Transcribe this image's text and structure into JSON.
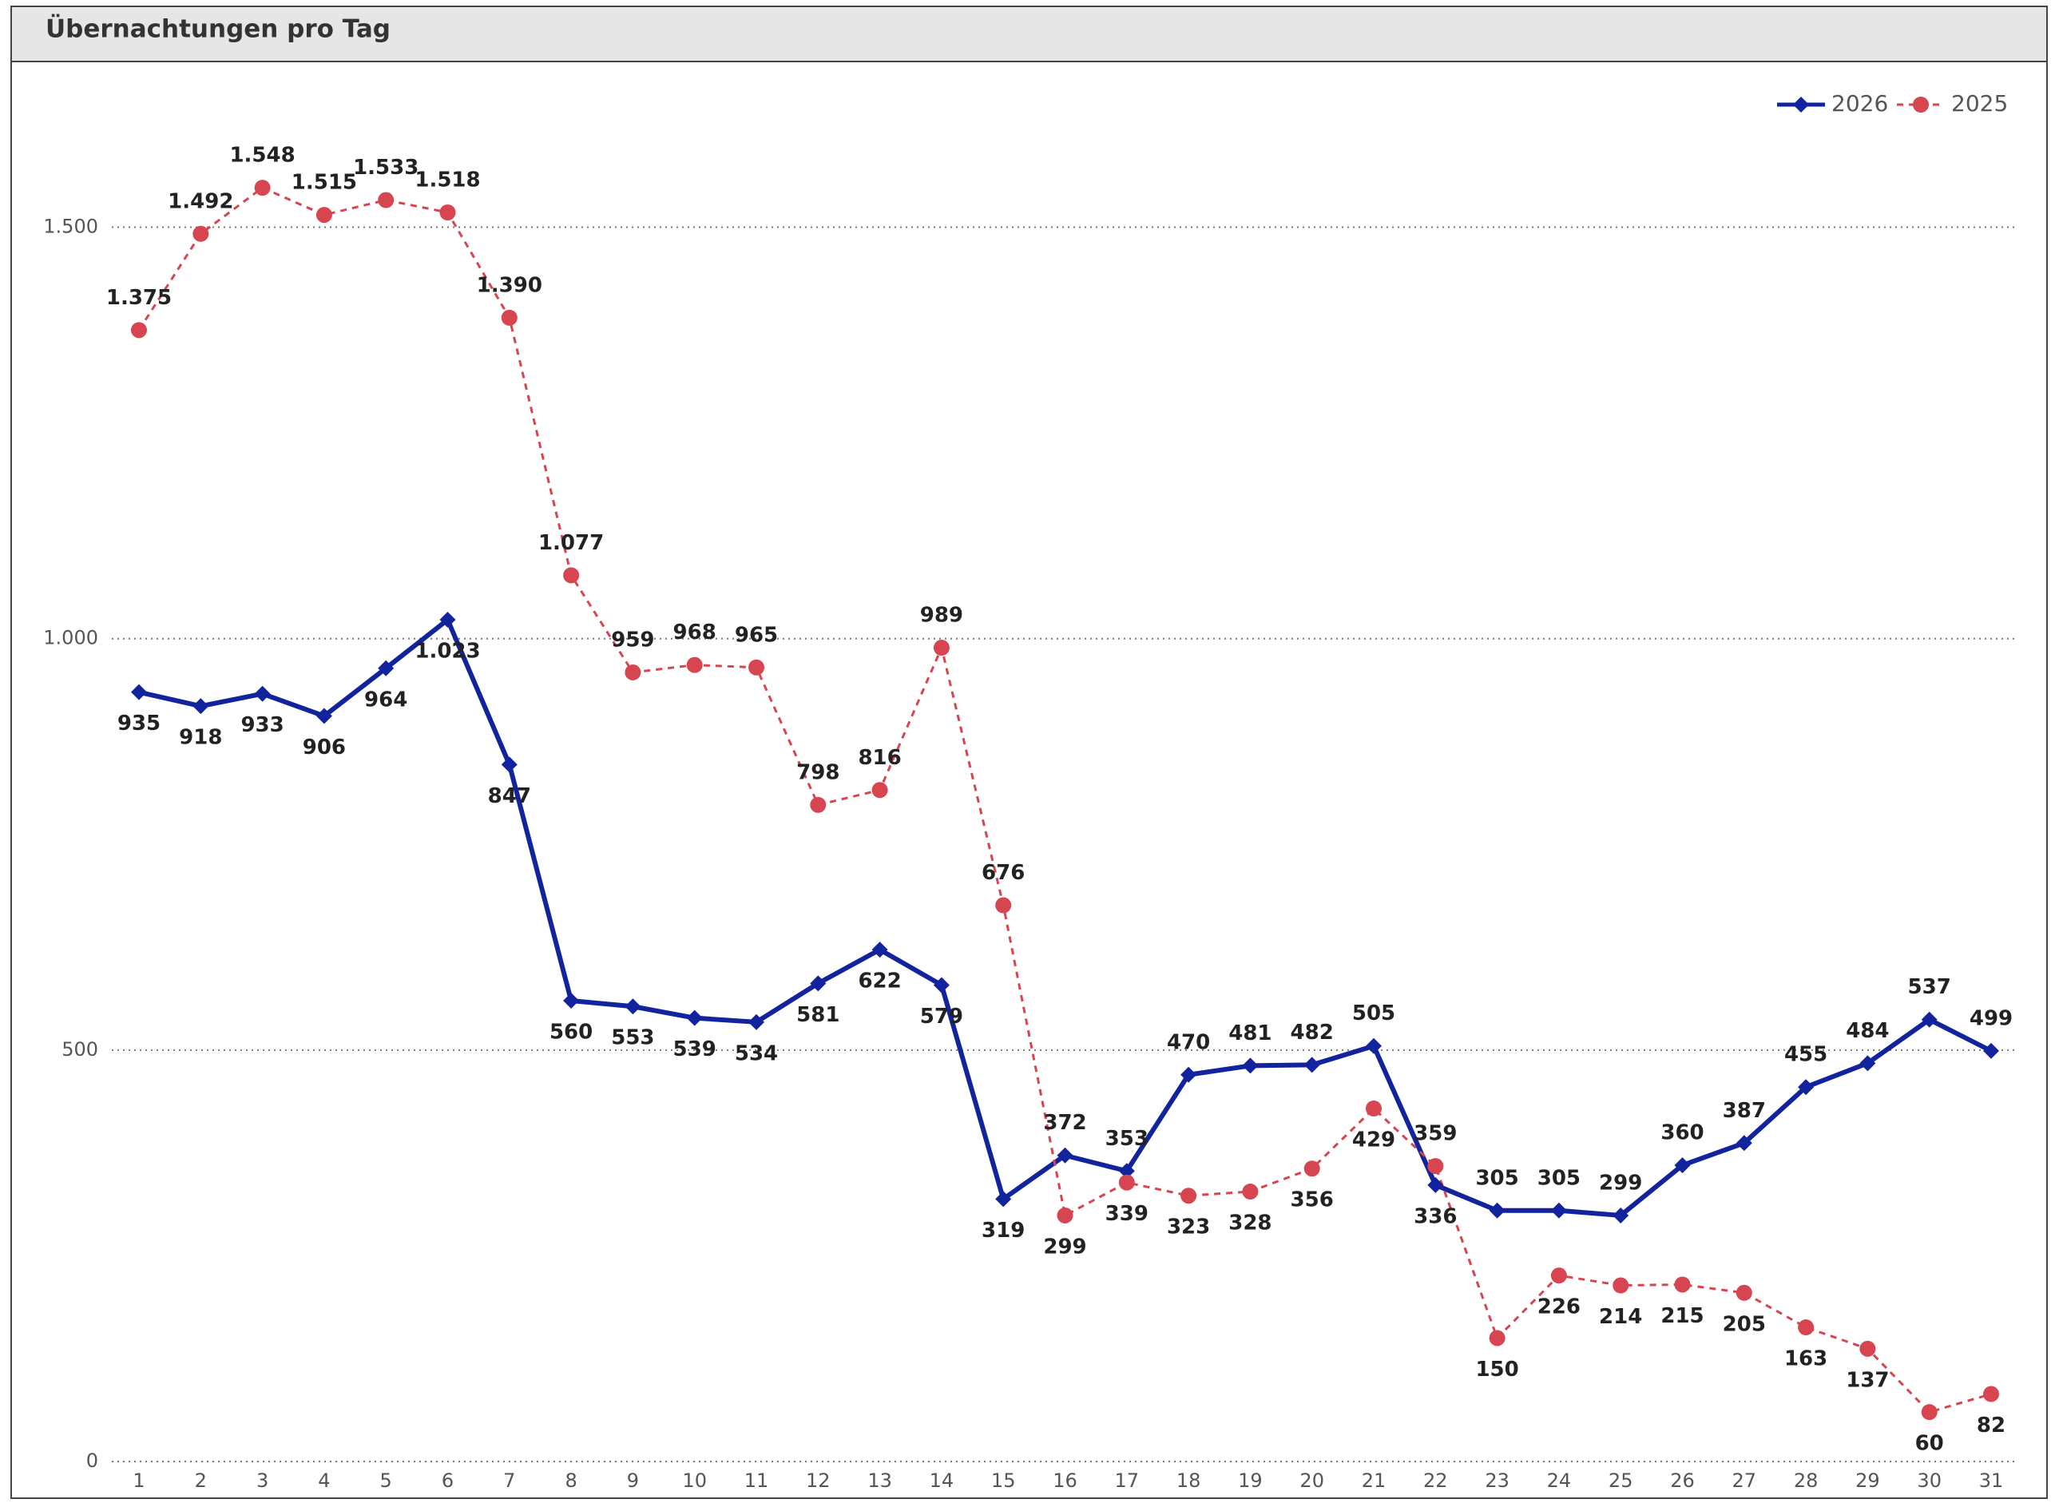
{
  "chart_data": {
    "type": "line",
    "title": "Übernachtungen pro Tag",
    "categories": [
      1,
      2,
      3,
      4,
      5,
      6,
      7,
      8,
      9,
      10,
      11,
      12,
      13,
      14,
      15,
      16,
      17,
      18,
      19,
      20,
      21,
      22,
      23,
      24,
      25,
      26,
      27,
      28,
      29,
      30,
      31
    ],
    "series": [
      {
        "name": "2026",
        "color": "#12239e",
        "marker": "diamond",
        "dash": false,
        "values": [
          935,
          918,
          933,
          906,
          964,
          1023,
          847,
          560,
          553,
          539,
          534,
          581,
          622,
          579,
          319,
          372,
          353,
          470,
          481,
          482,
          505,
          336,
          305,
          305,
          299,
          360,
          387,
          455,
          484,
          537,
          499
        ],
        "value_labels": [
          "935",
          "918",
          "933",
          "906",
          "964",
          "1.023",
          "847",
          "560",
          "553",
          "539",
          "534",
          "581",
          "622",
          "579",
          "319",
          "372",
          "353",
          "470",
          "481",
          "482",
          "505",
          "336",
          "305",
          "305",
          "299",
          "360",
          "387",
          "455",
          "484",
          "537",
          "499"
        ]
      },
      {
        "name": "2025",
        "color": "#d64550",
        "marker": "circle",
        "dash": true,
        "values": [
          1375,
          1492,
          1548,
          1515,
          1533,
          1518,
          1390,
          1077,
          959,
          968,
          965,
          798,
          816,
          989,
          676,
          299,
          339,
          323,
          328,
          356,
          429,
          359,
          150,
          226,
          214,
          215,
          205,
          163,
          137,
          60,
          82
        ],
        "value_labels": [
          "1.375",
          "1.492",
          "1.548",
          "1.515",
          "1.533",
          "1.518",
          "1.390",
          "1.077",
          "959",
          "968",
          "965",
          "798",
          "816",
          "989",
          "676",
          "299",
          "339",
          "323",
          "328",
          "356",
          "429",
          "359",
          "150",
          "226",
          "214",
          "215",
          "205",
          "163",
          "137",
          "60",
          "82"
        ]
      }
    ],
    "ylim": [
      0,
      1650
    ],
    "yticks": [
      0,
      500,
      {
        "value": 1000,
        "label": "1.000"
      },
      {
        "value": 1500,
        "label": "1.500"
      }
    ],
    "grid": true,
    "legend": "top-right"
  }
}
